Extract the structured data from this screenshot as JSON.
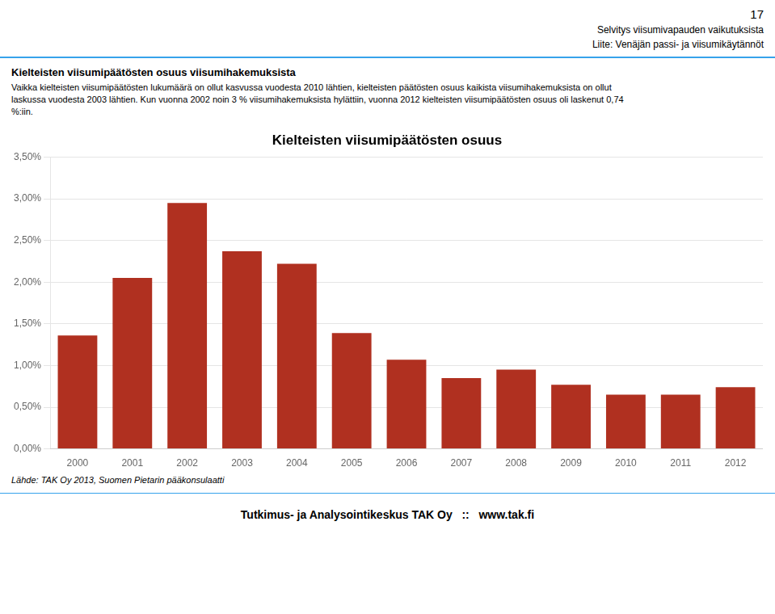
{
  "chart_data": {
    "type": "bar",
    "title": "Kielteisten viisumipäätösten osuus",
    "categories": [
      "2000",
      "2001",
      "2002",
      "2003",
      "2004",
      "2005",
      "2006",
      "2007",
      "2008",
      "2009",
      "2010",
      "2011",
      "2012"
    ],
    "values": [
      0.0136,
      0.0205,
      0.0295,
      0.0237,
      0.0222,
      0.0139,
      0.0107,
      0.0085,
      0.0095,
      0.0077,
      0.0065,
      0.0065,
      0.0074
    ],
    "color": "#B03020",
    "ylim": [
      0,
      0.035
    ],
    "yticks": [
      {
        "value": 0.0,
        "label": "0,00%"
      },
      {
        "value": 0.005,
        "label": "0,50%"
      },
      {
        "value": 0.01,
        "label": "1,00%"
      },
      {
        "value": 0.015,
        "label": "1,50%"
      },
      {
        "value": 0.02,
        "label": "2,00%"
      },
      {
        "value": 0.025,
        "label": "2,50%"
      },
      {
        "value": 0.03,
        "label": "3,00%"
      },
      {
        "value": 0.035,
        "label": "3,50%"
      }
    ],
    "grid": true,
    "annotations": [
      "17",
      "Selvitys viisumivapauden vaikutuksista",
      "Liite: Venäjän passi- ja viisumikäytännöt",
      "Kielteisten viisumipäätösten osuus viisumihakemuksista",
      "Vaikka kielteisten viisumipäätösten lukumäärä on ollut kasvussa vuodesta 2010 lähtien, kielteisten päätösten osuus kaikista viisumihakemuksista on ollut",
      "laskussa vuodesta 2003 lähtien. Kun vuonna 2002 noin 3 % viisumihakemuksista hylättiin, vuonna 2012 kielteisten viisumipäätösten osuus oli laskenut 0,74",
      "%:iin.",
      "Lähde: TAK Oy 2013, Suomen Pietarin pääkonsulaatti",
      "Tutkimus- ja Analysointikeskus TAK Oy   ::   www.tak.fi"
    ]
  }
}
